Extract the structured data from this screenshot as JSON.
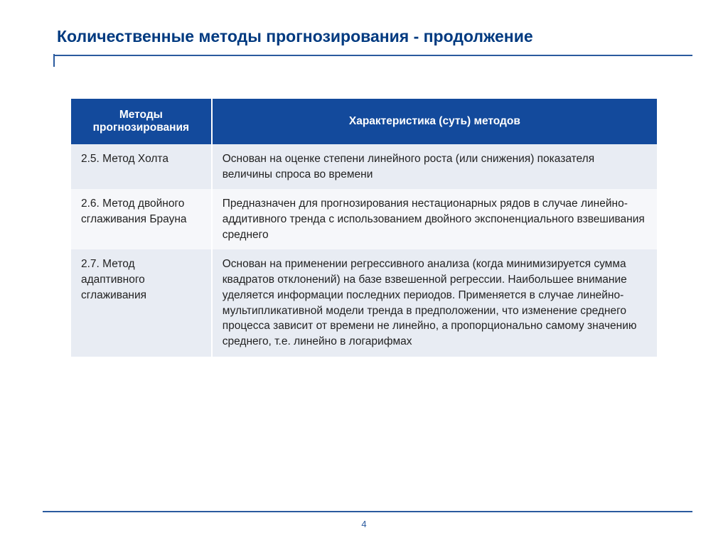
{
  "title": "Количественные методы прогнозирования - продолжение",
  "colors": {
    "title_text": "#003a80",
    "rule": "#2a5a9e",
    "header_bg": "#134a9c",
    "header_text": "#ffffff",
    "row_odd_bg": "#e8ecf3",
    "row_even_bg": "#f6f7fa",
    "body_text": "#222222"
  },
  "typography": {
    "title_fontsize": 23,
    "body_fontsize": 15.5,
    "page_fontsize": 13,
    "font_family": "Arial"
  },
  "table": {
    "columns": [
      "Методы прогнозирования",
      "Характеристика (суть) методов"
    ],
    "col_widths_pct": [
      24,
      76
    ],
    "rows": [
      {
        "method": "2.5.  Метод Холта",
        "desc": "Основан на оценке степени линейного роста (или снижения) показателя величины спроса во времени"
      },
      {
        "method": "2.6.  Метод двойного сглаживания Брауна",
        "desc": "Предназначен для прогнозирования нестационарных рядов в случае линейно-аддитивного тренда с использованием двойного экспоненциального взвешивания среднего"
      },
      {
        "method": "2.7.  Метод адаптивного сглаживания",
        "desc": "Основан на применении регрессивного анализа (когда минимизируется сумма квадратов отклонений) на базе взвешенной регрессии. Наибольшее внимание уделяется информации последних периодов. Применяется в случае линейно-мультипликативной модели тренда в предположении, что изменение среднего процесса зависит от времени не линейно, а пропорционально самому значению среднего, т.е. линейно в логарифмах"
      }
    ]
  },
  "page_number": "4"
}
